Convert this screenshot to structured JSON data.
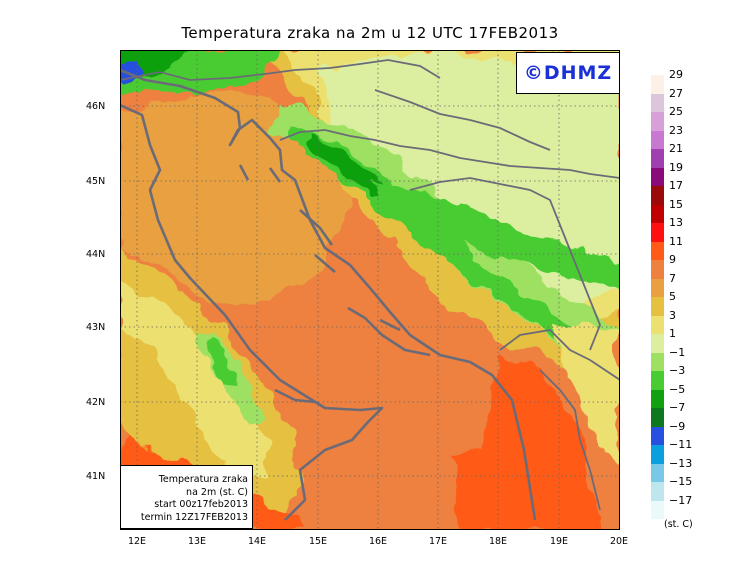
{
  "title": "Temperatura zraka na 2m u 12 UTC 17FEB2013",
  "logo": "©DHMZ",
  "info_box": {
    "line1": "Temperatura zraka",
    "line2": "na 2m (st. C)",
    "line3": "start 00z17feb2013",
    "line4": "termin 12Z17FEB2013"
  },
  "lat_labels": [
    "46N",
    "45N",
    "44N",
    "43N",
    "42N",
    "41N"
  ],
  "lon_labels": [
    "12E",
    "13E",
    "14E",
    "15E",
    "16E",
    "17E",
    "18E",
    "19E",
    "20E"
  ],
  "legend": {
    "labels": [
      "29",
      "27",
      "25",
      "23",
      "21",
      "19",
      "17",
      "15",
      "13",
      "11",
      "9",
      "7",
      "5",
      "3",
      "1",
      "−1",
      "−3",
      "−5",
      "−7",
      "−9",
      "−11",
      "−13",
      "−15",
      "−17"
    ],
    "colors": [
      "#fdf0e6",
      "#dcc6dc",
      "#d8a0d8",
      "#c878d0",
      "#a040b0",
      "#8a0a7a",
      "#9a0a0a",
      "#c00000",
      "#ff1010",
      "#ff5a18",
      "#ee8040",
      "#e8a040",
      "#e6c040",
      "#ece070",
      "#dcefa0",
      "#9ee062",
      "#48cc32",
      "#10a010",
      "#0c7a1c",
      "#2850e0",
      "#0aa0e0",
      "#78c8e8",
      "#bde6ee",
      "#eafafa"
    ],
    "unit": "(st. C)"
  }
}
